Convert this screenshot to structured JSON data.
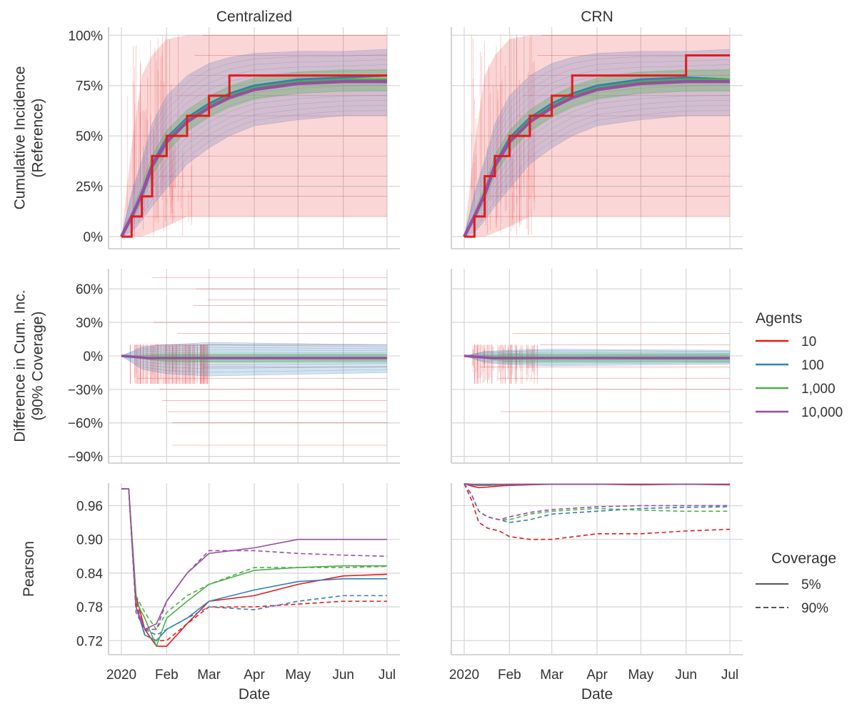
{
  "chart_data": {
    "type": "line",
    "layout": "3 rows x 2 columns facet grid, shared x axis (Date), row-wise y axes",
    "columns": [
      "Centralized",
      "CRN"
    ],
    "xlabel": "Date",
    "x_ticks": [
      "2020",
      "Feb",
      "Mar",
      "Apr",
      "May",
      "Jun",
      "Jul"
    ],
    "x_tick_dates": [
      "2020-01-01",
      "2020-02-01",
      "2020-03-01",
      "2020-04-01",
      "2020-05-01",
      "2020-06-01",
      "2020-07-01"
    ],
    "grid": true,
    "rows": [
      {
        "ylabel": [
          "Cumulative Incidence",
          "(Reference)"
        ],
        "ylim": [
          -0.06,
          1.04
        ],
        "yticks": [
          0,
          0.25,
          0.5,
          0.75,
          1.0
        ],
        "ytick_labels": [
          "0%",
          "25%",
          "50%",
          "75%",
          "100%"
        ],
        "curves": {
          "x": [
            "2020-01-01",
            "2020-01-08",
            "2020-01-15",
            "2020-01-22",
            "2020-02-01",
            "2020-02-15",
            "2020-03-01",
            "2020-03-15",
            "2020-04-01",
            "2020-05-01",
            "2020-06-01",
            "2020-07-01"
          ],
          "Centralized": {
            "10": [
              0.0,
              0.1,
              0.2,
              0.4,
              0.5,
              0.6,
              0.7,
              0.8,
              0.8,
              0.8,
              0.8,
              0.8
            ],
            "100": [
              0.0,
              0.1,
              0.22,
              0.36,
              0.49,
              0.59,
              0.66,
              0.71,
              0.75,
              0.78,
              0.79,
              0.8
            ],
            "1,000": [
              0.0,
              0.1,
              0.21,
              0.35,
              0.48,
              0.58,
              0.65,
              0.7,
              0.74,
              0.77,
              0.78,
              0.78
            ],
            "10,000": [
              0.0,
              0.1,
              0.21,
              0.35,
              0.47,
              0.57,
              0.64,
              0.69,
              0.73,
              0.76,
              0.77,
              0.77
            ]
          },
          "CRN": {
            "10": [
              0.0,
              0.1,
              0.3,
              0.4,
              0.5,
              0.6,
              0.7,
              0.8,
              0.8,
              0.8,
              0.9,
              0.9
            ],
            "100": [
              0.0,
              0.1,
              0.22,
              0.36,
              0.49,
              0.59,
              0.66,
              0.71,
              0.75,
              0.78,
              0.79,
              0.78
            ],
            "1,000": [
              0.0,
              0.1,
              0.21,
              0.35,
              0.48,
              0.58,
              0.65,
              0.7,
              0.74,
              0.77,
              0.78,
              0.78
            ],
            "10,000": [
              0.0,
              0.1,
              0.21,
              0.35,
              0.47,
              0.57,
              0.64,
              0.69,
              0.73,
              0.76,
              0.77,
              0.77
            ]
          }
        }
      },
      {
        "ylabel": [
          "Difference in Cum. Inc.",
          "(90% Coverage)"
        ],
        "ylim": [
          -0.96,
          0.78
        ],
        "yticks": [
          -0.9,
          -0.6,
          -0.3,
          0,
          0.3,
          0.6
        ],
        "ytick_labels": [
          "−90%",
          "−60%",
          "−30%",
          "0%",
          "30%",
          "60%"
        ],
        "mean_difference": {
          "Centralized": {
            "10": -0.02,
            "100": -0.02,
            "1,000": -0.02,
            "10,000": -0.02
          },
          "CRN": {
            "10": -0.02,
            "100": -0.02,
            "1,000": -0.02,
            "10,000": -0.02
          }
        }
      },
      {
        "ylabel": [
          "Pearson"
        ],
        "ylim": [
          0.695,
          1.0
        ],
        "yticks": [
          0.72,
          0.78,
          0.84,
          0.9,
          0.96
        ],
        "ytick_labels": [
          "0.72",
          "0.78",
          "0.84",
          "0.90",
          "0.96"
        ],
        "x": [
          "2020-01-01",
          "2020-01-06",
          "2020-01-11",
          "2020-01-17",
          "2020-01-25",
          "2020-02-01",
          "2020-02-15",
          "2020-03-01",
          "2020-04-01",
          "2020-05-01",
          "2020-06-01",
          "2020-07-01"
        ],
        "series": {
          "Centralized": [
            {
              "agents": "10",
              "coverage": "5%",
              "values": [
                0.99,
                0.99,
                0.8,
                0.74,
                0.71,
                0.71,
                0.75,
                0.79,
                0.8,
                0.82,
                0.835,
                0.838
              ]
            },
            {
              "agents": "10",
              "coverage": "90%",
              "values": [
                0.99,
                0.99,
                0.79,
                0.73,
                0.72,
                0.72,
                0.75,
                0.78,
                0.78,
                0.785,
                0.79,
                0.79
              ]
            },
            {
              "agents": "100",
              "coverage": "5%",
              "values": [
                0.99,
                0.99,
                0.78,
                0.73,
                0.72,
                0.74,
                0.76,
                0.79,
                0.81,
                0.825,
                0.83,
                0.83
              ]
            },
            {
              "agents": "100",
              "coverage": "90%",
              "values": [
                0.99,
                0.99,
                0.78,
                0.74,
                0.73,
                0.74,
                0.76,
                0.78,
                0.775,
                0.79,
                0.8,
                0.8
              ]
            },
            {
              "agents": "1,000",
              "coverage": "5%",
              "values": [
                0.99,
                0.99,
                0.79,
                0.76,
                0.71,
                0.76,
                0.79,
                0.82,
                0.845,
                0.85,
                0.853,
                0.853
              ]
            },
            {
              "agents": "1,000",
              "coverage": "90%",
              "values": [
                0.99,
                0.99,
                0.8,
                0.77,
                0.74,
                0.77,
                0.8,
                0.82,
                0.85,
                0.85,
                0.85,
                0.852
              ]
            },
            {
              "agents": "10,000",
              "coverage": "5%",
              "values": [
                0.99,
                0.99,
                0.78,
                0.74,
                0.75,
                0.79,
                0.84,
                0.875,
                0.885,
                0.9,
                0.9,
                0.9
              ]
            },
            {
              "agents": "10,000",
              "coverage": "90%",
              "values": [
                0.99,
                0.99,
                0.77,
                0.74,
                0.74,
                0.79,
                0.84,
                0.88,
                0.88,
                0.875,
                0.872,
                0.87
              ]
            }
          ],
          "CRN": [
            {
              "agents": "10",
              "coverage": "5%",
              "values": [
                0.999,
                0.995,
                0.992,
                0.993,
                0.995,
                0.996,
                0.997,
                0.998,
                0.998,
                0.997,
                0.998,
                0.997
              ]
            },
            {
              "agents": "10",
              "coverage": "90%",
              "values": [
                0.999,
                0.97,
                0.93,
                0.92,
                0.915,
                0.905,
                0.9,
                0.9,
                0.91,
                0.91,
                0.915,
                0.918
              ]
            },
            {
              "agents": "100",
              "coverage": "5%",
              "values": [
                0.999,
                0.997,
                0.996,
                0.996,
                0.997,
                0.997,
                0.998,
                0.998,
                0.998,
                0.998,
                0.998,
                0.998
              ]
            },
            {
              "agents": "100",
              "coverage": "90%",
              "values": [
                0.999,
                0.98,
                0.95,
                0.94,
                0.935,
                0.93,
                0.935,
                0.945,
                0.95,
                0.955,
                0.957,
                0.958
              ]
            },
            {
              "agents": "1,000",
              "coverage": "5%",
              "values": [
                0.999,
                0.998,
                0.997,
                0.997,
                0.997,
                0.998,
                0.998,
                0.998,
                0.998,
                0.998,
                0.998,
                0.998
              ]
            },
            {
              "agents": "1,000",
              "coverage": "90%",
              "values": [
                0.999,
                0.98,
                0.95,
                0.94,
                0.935,
                0.935,
                0.945,
                0.95,
                0.955,
                0.952,
                0.95,
                0.95
              ]
            },
            {
              "agents": "10,000",
              "coverage": "5%",
              "values": [
                0.999,
                0.998,
                0.998,
                0.998,
                0.998,
                0.998,
                0.998,
                0.998,
                0.998,
                0.998,
                0.998,
                0.998
              ]
            },
            {
              "agents": "10,000",
              "coverage": "90%",
              "values": [
                0.999,
                0.98,
                0.95,
                0.94,
                0.935,
                0.94,
                0.948,
                0.953,
                0.958,
                0.96,
                0.96,
                0.96
              ]
            }
          ]
        }
      }
    ],
    "legend_agents": {
      "title": "Agents",
      "entries": [
        {
          "label": "10",
          "color": "#e41a1c"
        },
        {
          "label": "100",
          "color": "#377eb8"
        },
        {
          "label": "1,000",
          "color": "#4daf4a"
        },
        {
          "label": "10,000",
          "color": "#984ea3"
        }
      ]
    },
    "legend_coverage": {
      "title": "Coverage",
      "entries": [
        {
          "label": "5%",
          "style": "solid"
        },
        {
          "label": "90%",
          "style": "dashed"
        }
      ]
    },
    "legend_placement": "right"
  }
}
